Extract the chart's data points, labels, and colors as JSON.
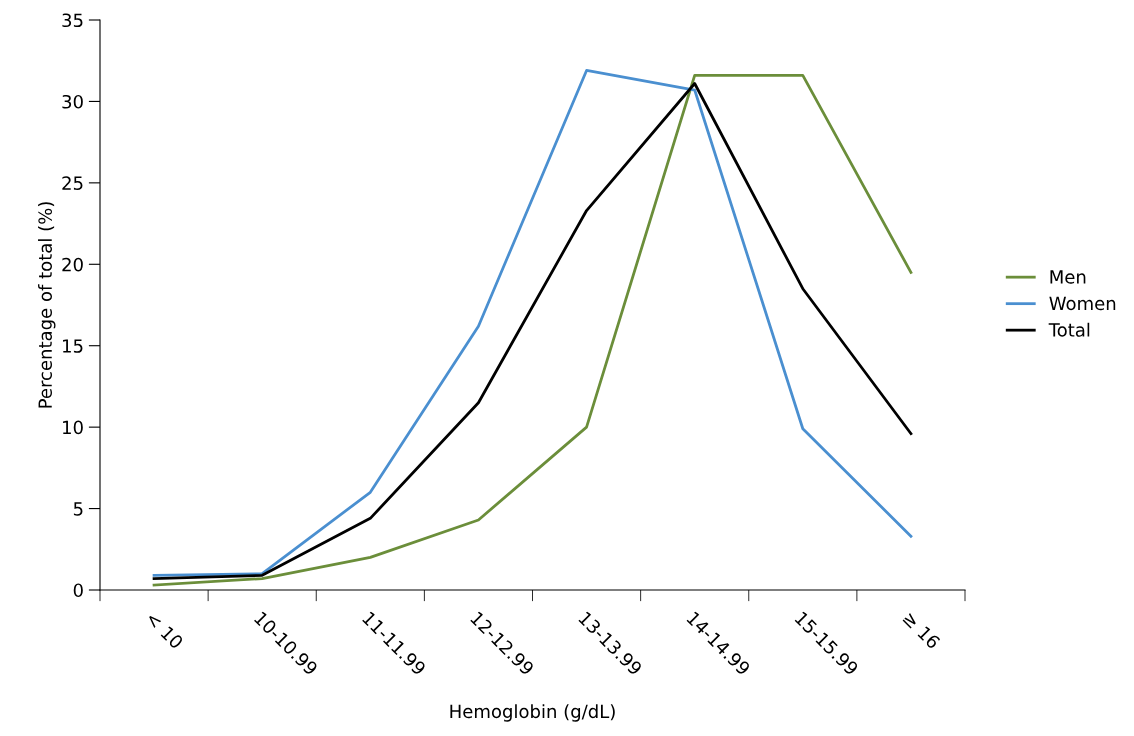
{
  "chart_data": {
    "type": "line",
    "xlabel": "Hemoglobin (g/dL)",
    "ylabel": "Percentage of total (%)",
    "categories": [
      "< 10",
      "10-10.99",
      "11-11.99",
      "12-12.99",
      "13-13.99",
      "14-14.99",
      "15-15.99",
      "≥ 16"
    ],
    "series": [
      {
        "name": "Men",
        "color": "#6b8e3a",
        "values": [
          0.3,
          0.7,
          2.0,
          4.3,
          10.0,
          31.6,
          31.6,
          19.5
        ]
      },
      {
        "name": "Women",
        "color": "#4a8fd0",
        "values": [
          0.9,
          1.0,
          6.0,
          16.2,
          31.9,
          30.7,
          9.9,
          3.3
        ]
      },
      {
        "name": "Total",
        "color": "#000000",
        "values": [
          0.7,
          0.9,
          4.4,
          11.5,
          23.3,
          31.1,
          18.5,
          9.6
        ]
      }
    ],
    "ylim": [
      0,
      35
    ],
    "yticks": [
      0,
      5,
      10,
      15,
      20,
      25,
      30,
      35
    ],
    "grid": false,
    "legend": "right",
    "marker": "none",
    "line_style": "solid"
  }
}
